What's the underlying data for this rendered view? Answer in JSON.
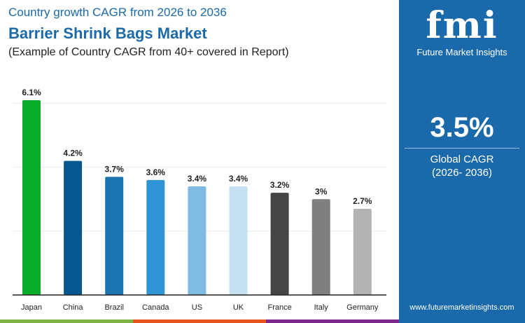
{
  "header": {
    "subtitle_top": "Country growth CAGR from 2026 to 2036",
    "title": "Barrier Shrink Bags Market",
    "note": "(Example of Country CAGR from 40+ covered in Report)"
  },
  "panel": {
    "logo": "fmi",
    "logo_text": "Future Market Insights",
    "global_value": "3.5%",
    "global_label": "Global CAGR",
    "global_period": "(2026- 2036)",
    "website": "www.futuremarketinsights.com",
    "background": "#1a6aab"
  },
  "chart_data": {
    "type": "bar",
    "title": "",
    "xlabel": "",
    "ylabel": "",
    "ylim": [
      0,
      6.1
    ],
    "grid": true,
    "categories": [
      "Japan",
      "China",
      "Brazil",
      "Canada",
      "US",
      "UK",
      "France",
      "Italy",
      "Germany"
    ],
    "values": [
      6.1,
      4.2,
      3.7,
      3.6,
      3.4,
      3.4,
      3.2,
      3.0,
      2.7
    ],
    "labels": [
      "6.1%",
      "4.2%",
      "3.7%",
      "3.6%",
      "3.4%",
      "3.4%",
      "3.2%",
      "3%",
      "2.7%"
    ],
    "colors": [
      "#0aad2c",
      "#06588f",
      "#1b74b0",
      "#3094d5",
      "#7fbbe2",
      "#c4e1f2",
      "#454545",
      "#7f7f7f",
      "#b3b3b3"
    ],
    "gridlines": [
      2,
      4,
      6
    ]
  },
  "stripes": [
    "#7cb342",
    "#e8541e",
    "#7b2a8c"
  ]
}
